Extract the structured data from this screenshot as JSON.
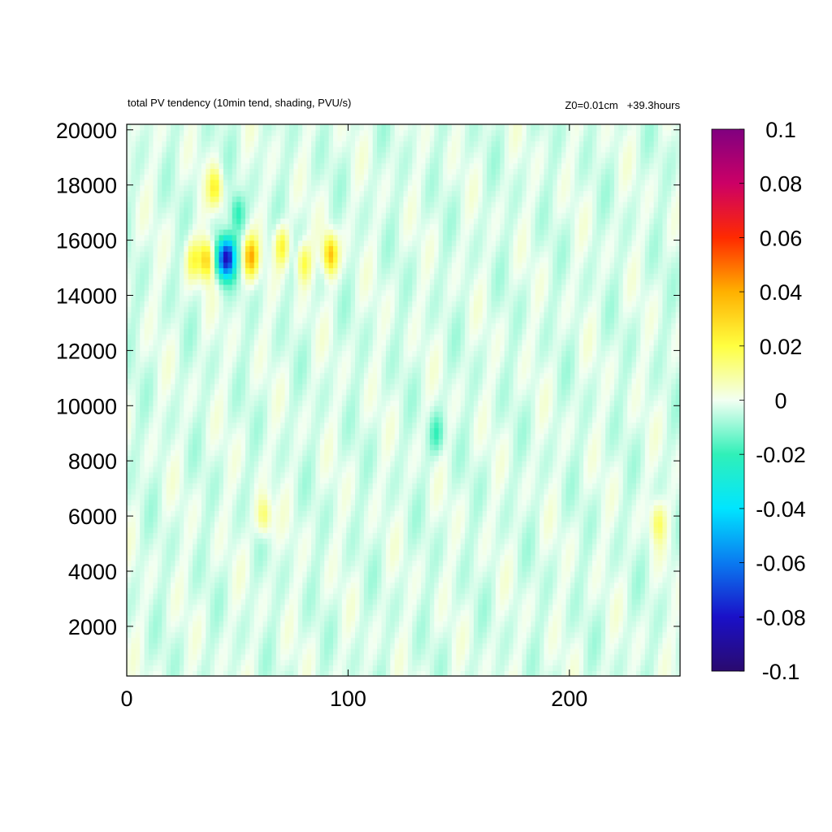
{
  "chart_data": {
    "type": "heatmap",
    "title": "total PV tendency (10min tend, shading, PVU/s)",
    "annotation_right": "Z0=0.01cm   +39.3hours",
    "xlabel": "",
    "ylabel": "",
    "xlim": [
      0,
      250
    ],
    "ylim": [
      200,
      20200
    ],
    "x_ticks": [
      0,
      100,
      200
    ],
    "x_tick_labels": [
      "0",
      "100",
      "200"
    ],
    "y_ticks": [
      2000,
      4000,
      6000,
      8000,
      10000,
      12000,
      14000,
      16000,
      18000,
      20000
    ],
    "y_tick_labels": [
      "2000",
      "4000",
      "6000",
      "8000",
      "10000",
      "12000",
      "14000",
      "16000",
      "18000",
      "20000"
    ],
    "colorbar": {
      "range": [
        -0.1,
        0.1
      ],
      "ticks": [
        0.1,
        0.08,
        0.06,
        0.04,
        0.02,
        0,
        -0.02,
        -0.04,
        -0.06,
        -0.08,
        -0.1
      ],
      "tick_labels": [
        "0.1",
        "0.08",
        "0.06",
        "0.04",
        "0.02",
        "0",
        "-0.02",
        "-0.04",
        "-0.06",
        "-0.08",
        "-0.1"
      ],
      "colors": [
        "#2a0a6e",
        "#1a10c8",
        "#0a7af0",
        "#00e5ff",
        "#30f0b8",
        "#f2fff2",
        "#ffff40",
        "#ffb000",
        "#ff2a00",
        "#cc0066",
        "#800080"
      ]
    },
    "features": [
      {
        "x": 46,
        "y": 15400,
        "value": -0.06
      },
      {
        "x": 43,
        "y": 15300,
        "value": -0.04
      },
      {
        "x": 36,
        "y": 15300,
        "value": 0.035
      },
      {
        "x": 56,
        "y": 15400,
        "value": 0.04
      },
      {
        "x": 70,
        "y": 15800,
        "value": 0.025
      },
      {
        "x": 80,
        "y": 15200,
        "value": 0.022
      },
      {
        "x": 92,
        "y": 15500,
        "value": 0.04
      },
      {
        "x": 40,
        "y": 17900,
        "value": 0.025
      },
      {
        "x": 30,
        "y": 15300,
        "value": 0.02
      },
      {
        "x": 62,
        "y": 6000,
        "value": 0.02
      },
      {
        "x": 240,
        "y": 5800,
        "value": 0.018
      },
      {
        "x": 50,
        "y": 17000,
        "value": -0.02
      },
      {
        "x": 140,
        "y": 9000,
        "value": -0.015
      }
    ],
    "grid": false
  }
}
